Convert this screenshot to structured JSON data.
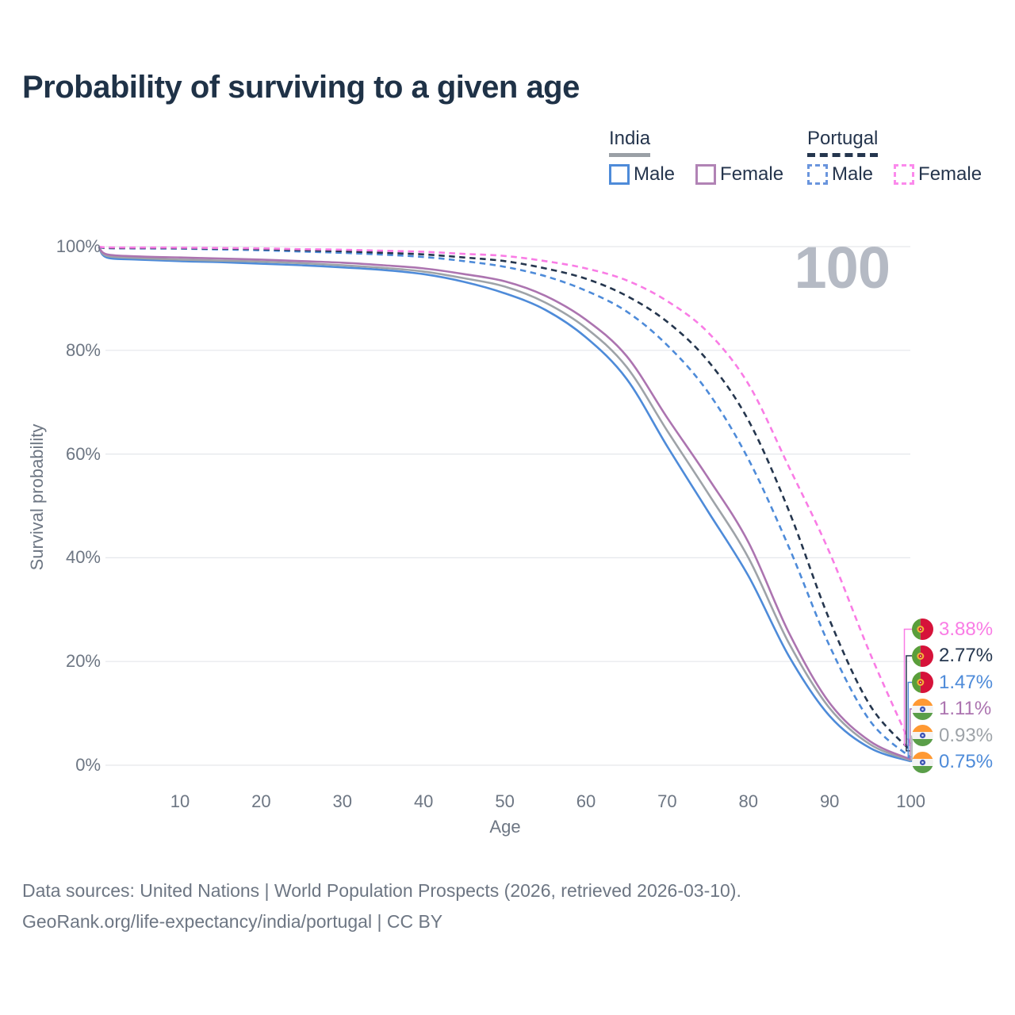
{
  "title": "Probability of surviving to a given age",
  "watermark": "100",
  "legend": {
    "groups": [
      {
        "country": "India",
        "line_style": "solid",
        "underline_color": "#9aa0a6",
        "items": [
          {
            "label": "Male",
            "color": "#4e8bd9"
          },
          {
            "label": "Female",
            "color": "#b183b5"
          }
        ]
      },
      {
        "country": "Portugal",
        "line_style": "dashed",
        "underline_color": "#25364e",
        "items": [
          {
            "label": "Male",
            "color": "#6a95dd"
          },
          {
            "label": "Female",
            "color": "#fb8aec"
          }
        ]
      }
    ]
  },
  "footer": {
    "line1": "Data sources: United Nations | World Population Prospects (2026, retrieved 2026-03-10).",
    "line2": "GeoRank.org/life-expectancy/india/portugal | CC BY"
  },
  "flags": {
    "india": {
      "saffron": "#FF9933",
      "white": "#F4F4F4",
      "green": "#5a9e49",
      "chakra": "#3f54b5"
    },
    "portugal": {
      "green": "#5a9e3a",
      "red": "#d6133a",
      "emblem_yellow": "#f3b23a",
      "emblem_red": "#c8102e"
    }
  },
  "chart_data": {
    "type": "line",
    "title": "Probability of surviving to a given age",
    "xlabel": "Age",
    "ylabel": "Survival probability",
    "xlim": [
      0,
      100
    ],
    "ylim": [
      0,
      100
    ],
    "grid": "horizontal",
    "legend_position": "top-right",
    "x_ticks": [
      10,
      20,
      30,
      40,
      50,
      60,
      70,
      80,
      90,
      100
    ],
    "y_ticks": [
      0,
      20,
      40,
      60,
      80,
      100
    ],
    "y_tick_suffix": "%",
    "series": [
      {
        "name": "India Male",
        "country": "india",
        "sex": "male",
        "color": "#4e8bd9",
        "dash": "solid",
        "end_label": "0.75%",
        "points": [
          [
            0,
            100
          ],
          [
            1,
            97.9
          ],
          [
            5,
            97.5
          ],
          [
            10,
            97.2
          ],
          [
            15,
            97.0
          ],
          [
            20,
            96.7
          ],
          [
            25,
            96.4
          ],
          [
            30,
            96.0
          ],
          [
            35,
            95.5
          ],
          [
            40,
            94.7
          ],
          [
            45,
            93.2
          ],
          [
            50,
            91.0
          ],
          [
            55,
            87.8
          ],
          [
            60,
            82.5
          ],
          [
            65,
            74.5
          ],
          [
            70,
            61.5
          ],
          [
            75,
            49.0
          ],
          [
            80,
            36.5
          ],
          [
            85,
            21.0
          ],
          [
            90,
            9.5
          ],
          [
            95,
            3.3
          ],
          [
            100,
            0.75
          ]
        ]
      },
      {
        "name": "India Both sexes",
        "country": "india",
        "sex": "both",
        "color": "#9ea3a8",
        "dash": "solid",
        "end_label": "0.93%",
        "points": [
          [
            0,
            100
          ],
          [
            1,
            98.2
          ],
          [
            5,
            97.8
          ],
          [
            10,
            97.5
          ],
          [
            15,
            97.3
          ],
          [
            20,
            97.1
          ],
          [
            25,
            96.8
          ],
          [
            30,
            96.4
          ],
          [
            35,
            95.9
          ],
          [
            40,
            95.2
          ],
          [
            45,
            93.9
          ],
          [
            50,
            92.3
          ],
          [
            55,
            89.2
          ],
          [
            60,
            84.3
          ],
          [
            65,
            76.8
          ],
          [
            70,
            64.5
          ],
          [
            75,
            52.5
          ],
          [
            80,
            40.0
          ],
          [
            85,
            23.5
          ],
          [
            90,
            11.0
          ],
          [
            95,
            4.0
          ],
          [
            100,
            0.93
          ]
        ]
      },
      {
        "name": "India Female",
        "country": "india",
        "sex": "female",
        "color": "#ac74b0",
        "dash": "solid",
        "end_label": "1.11%",
        "points": [
          [
            0,
            100
          ],
          [
            1,
            98.5
          ],
          [
            5,
            98.1
          ],
          [
            10,
            97.9
          ],
          [
            15,
            97.7
          ],
          [
            20,
            97.5
          ],
          [
            25,
            97.2
          ],
          [
            30,
            96.9
          ],
          [
            35,
            96.4
          ],
          [
            40,
            95.8
          ],
          [
            45,
            94.7
          ],
          [
            50,
            93.3
          ],
          [
            55,
            90.5
          ],
          [
            60,
            85.9
          ],
          [
            65,
            78.9
          ],
          [
            70,
            67.0
          ],
          [
            75,
            55.5
          ],
          [
            80,
            43.0
          ],
          [
            85,
            25.5
          ],
          [
            90,
            12.0
          ],
          [
            95,
            4.6
          ],
          [
            100,
            1.11
          ]
        ]
      },
      {
        "name": "Portugal Male",
        "country": "portugal",
        "sex": "male",
        "color": "#4e8bd9",
        "dash": "dashed",
        "end_label": "1.47%",
        "points": [
          [
            0,
            100
          ],
          [
            1,
            99.7
          ],
          [
            5,
            99.65
          ],
          [
            10,
            99.6
          ],
          [
            15,
            99.45
          ],
          [
            20,
            99.3
          ],
          [
            25,
            99.05
          ],
          [
            30,
            98.8
          ],
          [
            35,
            98.45
          ],
          [
            40,
            98.0
          ],
          [
            45,
            97.2
          ],
          [
            50,
            96.1
          ],
          [
            55,
            94.3
          ],
          [
            60,
            91.5
          ],
          [
            65,
            87.5
          ],
          [
            70,
            81.0
          ],
          [
            75,
            72.0
          ],
          [
            80,
            59.0
          ],
          [
            85,
            42.0
          ],
          [
            90,
            23.0
          ],
          [
            95,
            8.5
          ],
          [
            100,
            1.47
          ]
        ]
      },
      {
        "name": "Portugal Both sexes",
        "country": "portugal",
        "sex": "both",
        "color": "#25364e",
        "dash": "dashed",
        "end_label": "2.77%",
        "points": [
          [
            0,
            100
          ],
          [
            1,
            99.75
          ],
          [
            5,
            99.72
          ],
          [
            10,
            99.7
          ],
          [
            15,
            99.6
          ],
          [
            20,
            99.5
          ],
          [
            25,
            99.3
          ],
          [
            30,
            99.1
          ],
          [
            35,
            98.8
          ],
          [
            40,
            98.5
          ],
          [
            45,
            97.9
          ],
          [
            50,
            97.2
          ],
          [
            55,
            95.8
          ],
          [
            60,
            93.8
          ],
          [
            65,
            90.5
          ],
          [
            70,
            85.5
          ],
          [
            75,
            78.0
          ],
          [
            80,
            66.5
          ],
          [
            85,
            49.0
          ],
          [
            90,
            28.0
          ],
          [
            95,
            11.5
          ],
          [
            100,
            2.77
          ]
        ]
      },
      {
        "name": "Portugal Female",
        "country": "portugal",
        "sex": "female",
        "color": "#f97ce5",
        "dash": "dashed",
        "end_label": "3.88%",
        "points": [
          [
            0,
            100
          ],
          [
            1,
            99.85
          ],
          [
            5,
            99.82
          ],
          [
            10,
            99.8
          ],
          [
            15,
            99.72
          ],
          [
            20,
            99.65
          ],
          [
            25,
            99.5
          ],
          [
            30,
            99.4
          ],
          [
            35,
            99.2
          ],
          [
            40,
            99.0
          ],
          [
            45,
            98.6
          ],
          [
            50,
            98.2
          ],
          [
            55,
            97.2
          ],
          [
            60,
            95.8
          ],
          [
            65,
            93.5
          ],
          [
            70,
            89.5
          ],
          [
            75,
            83.5
          ],
          [
            80,
            73.5
          ],
          [
            85,
            57.5
          ],
          [
            90,
            41.0
          ],
          [
            95,
            21.5
          ],
          [
            100,
            3.88
          ]
        ]
      }
    ]
  }
}
